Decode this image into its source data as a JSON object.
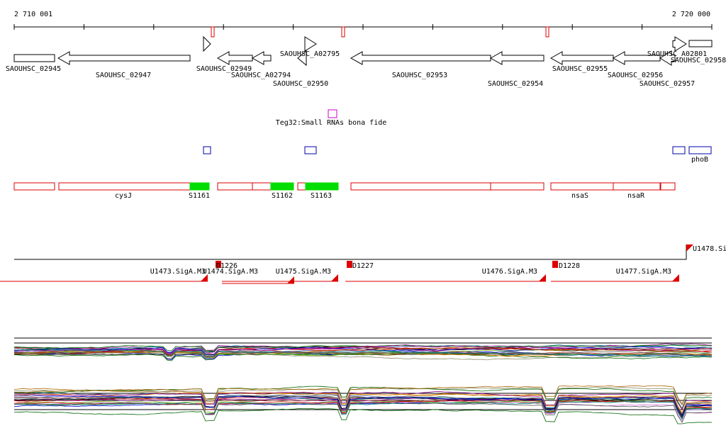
{
  "ruler": {
    "start": "2 710 001",
    "end": "2 720 000"
  },
  "genes": [
    "SAOUHSC_02945",
    "SAOUHSC_02947",
    "SAOUHSC_02949",
    "SAOUHSC_A02794",
    "SAOUHSC_02950",
    "SAOUHSC_A02795",
    "SAOUHSC_02953",
    "SAOUHSC_02954",
    "SAOUHSC_02955",
    "SAOUHSC_02956",
    "SAOUHSC_02957",
    "SAOUHSC_A02801",
    "SAOUHSC_02958"
  ],
  "srna": {
    "label": "Teg32:Small RNAs bona fide"
  },
  "operon": {
    "label": "phoB"
  },
  "regions": [
    "cysJ",
    "S1161",
    "S1162",
    "S1163",
    "nsaS",
    "nsaR"
  ],
  "promoters": [
    "U1478.Si",
    "D1226",
    "U1473.SigA.M3",
    "U1474.SigA.M3",
    "U1475.SigA.M3",
    "D1227",
    "U1476.SigA.M3",
    "D1228",
    "U1477.SigA.M3"
  ]
}
